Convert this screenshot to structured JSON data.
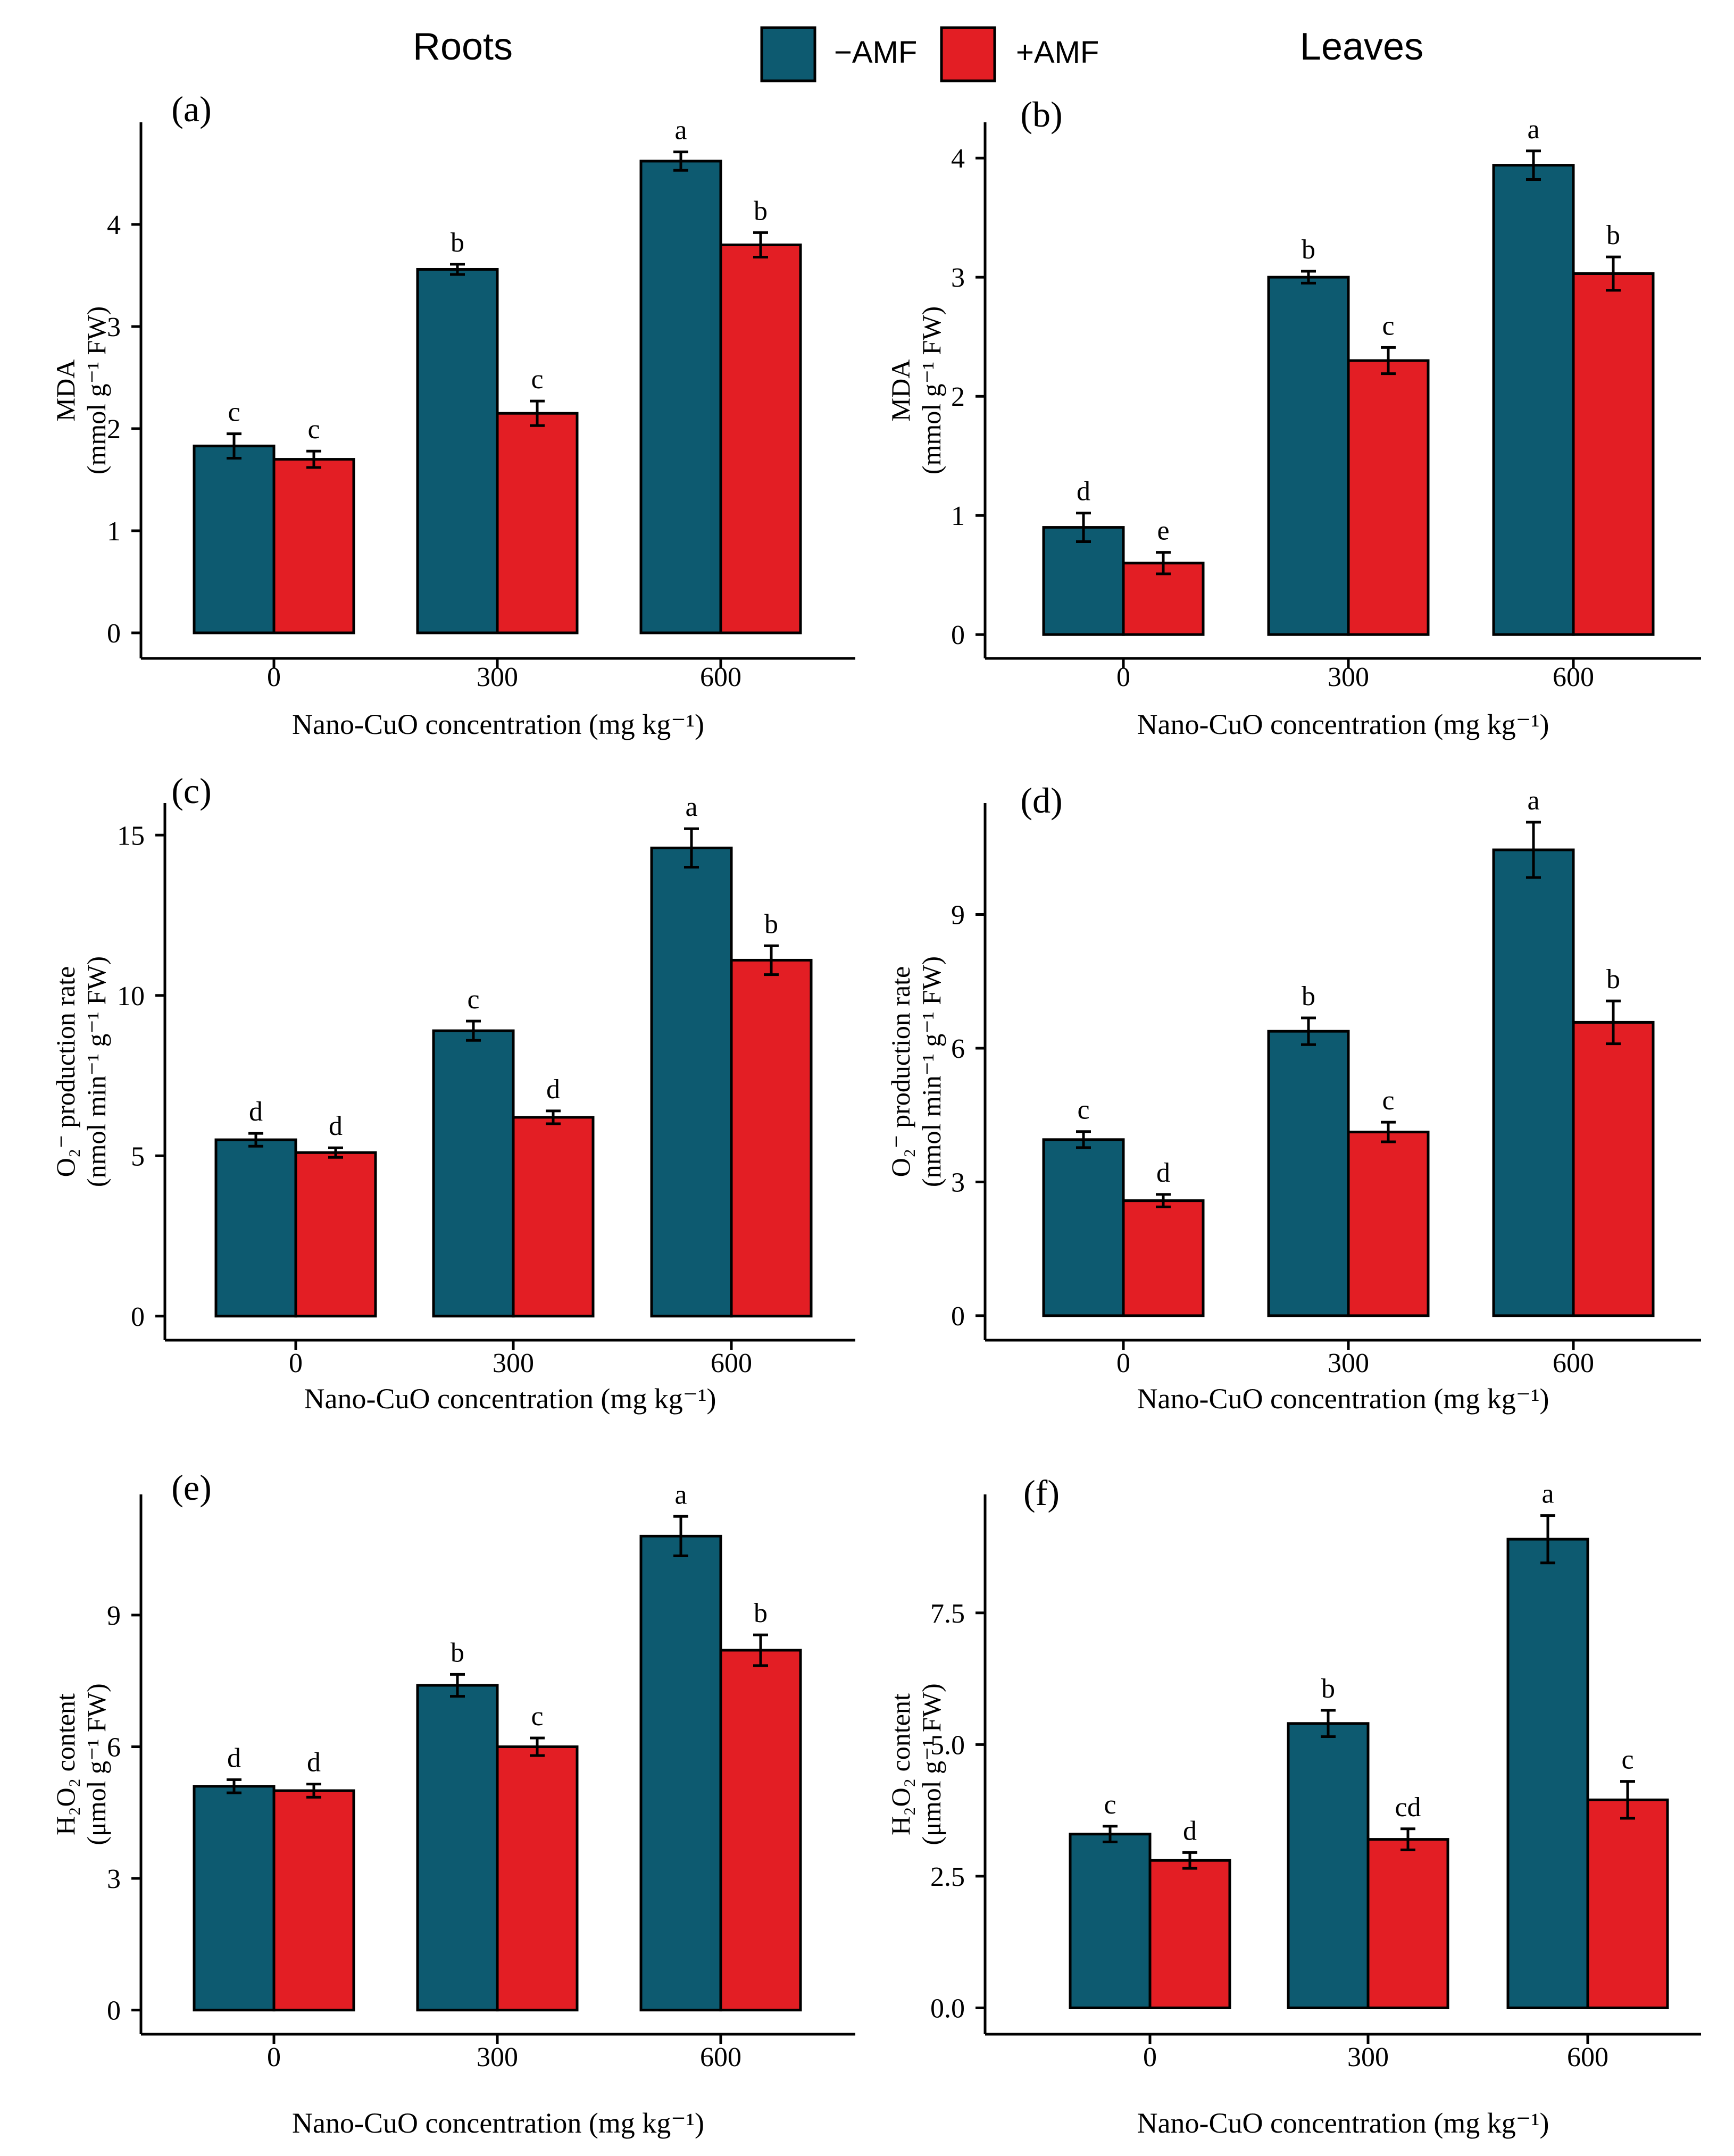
{
  "figure": {
    "column_titles": [
      "Roots",
      "Leaves"
    ],
    "legend": [
      {
        "label": "−AMF",
        "color": "#0d5a70"
      },
      {
        "label": "+AMF",
        "color": "#e31e24"
      }
    ]
  },
  "chart_data": [
    {
      "type": "bar",
      "panel": "(a)",
      "column": "Roots",
      "categories": [
        "0",
        "300",
        "600"
      ],
      "series": [
        {
          "name": "−AMF",
          "values": [
            1.83,
            3.56,
            4.62
          ],
          "errors": [
            0.12,
            0.05,
            0.09
          ],
          "letters": [
            "c",
            "b",
            "a"
          ]
        },
        {
          "name": "+AMF",
          "values": [
            1.7,
            2.15,
            3.8
          ],
          "errors": [
            0.08,
            0.12,
            0.12
          ],
          "letters": [
            "c",
            "c",
            "b"
          ]
        }
      ],
      "xlabel": "Nano-CuO concentration (mg kg⁻¹)",
      "ylabel_lines": [
        "MDA",
        "(mmol g⁻¹ FW)"
      ],
      "yticks": [
        0,
        1,
        2,
        3,
        4
      ],
      "ytick_labels": [
        "0",
        "1",
        "2",
        "3",
        "4"
      ],
      "ylim": [
        -0.25,
        5.0
      ]
    },
    {
      "type": "bar",
      "panel": "(b)",
      "column": "Leaves",
      "categories": [
        "0",
        "300",
        "600"
      ],
      "series": [
        {
          "name": "−AMF",
          "values": [
            0.9,
            3.0,
            3.94
          ],
          "errors": [
            0.12,
            0.05,
            0.12
          ],
          "letters": [
            "d",
            "b",
            "a"
          ]
        },
        {
          "name": "+AMF",
          "values": [
            0.6,
            2.3,
            3.03
          ],
          "errors": [
            0.09,
            0.11,
            0.14
          ],
          "letters": [
            "e",
            "c",
            "b"
          ]
        }
      ],
      "xlabel": "Nano-CuO concentration (mg kg⁻¹)",
      "ylabel_lines": [
        "MDA",
        "(mmol g⁻¹ FW)"
      ],
      "yticks": [
        0,
        1,
        2,
        3,
        4
      ],
      "ytick_labels": [
        "0",
        "1",
        "2",
        "3",
        "4"
      ],
      "ylim": [
        -0.2,
        4.3
      ]
    },
    {
      "type": "bar",
      "panel": "(c)",
      "column": "Roots",
      "categories": [
        "0",
        "300",
        "600"
      ],
      "series": [
        {
          "name": "−AMF",
          "values": [
            5.5,
            8.9,
            14.6
          ],
          "errors": [
            0.2,
            0.3,
            0.6
          ],
          "letters": [
            "d",
            "c",
            "a"
          ]
        },
        {
          "name": "+AMF",
          "values": [
            5.1,
            6.2,
            11.1
          ],
          "errors": [
            0.15,
            0.2,
            0.45
          ],
          "letters": [
            "d",
            "d",
            "b"
          ]
        }
      ],
      "xlabel": "Nano-CuO concentration (mg kg⁻¹)",
      "ylabel_lines": [
        "O₂⁻ production rate",
        "(nmol min⁻¹ g⁻¹ FW)"
      ],
      "yticks": [
        0,
        5,
        10,
        15
      ],
      "ytick_labels": [
        "0",
        "5",
        "10",
        "15"
      ],
      "ylim": [
        -0.75,
        16.0
      ]
    },
    {
      "type": "bar",
      "panel": "(d)",
      "column": "Leaves",
      "categories": [
        "0",
        "300",
        "600"
      ],
      "series": [
        {
          "name": "−AMF",
          "values": [
            3.95,
            6.38,
            10.45
          ],
          "errors": [
            0.18,
            0.3,
            0.62
          ],
          "letters": [
            "c",
            "b",
            "a"
          ]
        },
        {
          "name": "+AMF",
          "values": [
            2.58,
            4.12,
            6.58
          ],
          "errors": [
            0.14,
            0.22,
            0.48
          ],
          "letters": [
            "d",
            "c",
            "b"
          ]
        }
      ],
      "xlabel": "Nano-CuO concentration (mg kg⁻¹)",
      "ylabel_lines": [
        "O₂⁻ production rate",
        "(nmol min⁻¹ g⁻¹ FW)"
      ],
      "yticks": [
        0,
        3,
        6,
        9
      ],
      "ytick_labels": [
        "0",
        "3",
        "6",
        "9"
      ],
      "ylim": [
        -0.55,
        11.5
      ]
    },
    {
      "type": "bar",
      "panel": "(e)",
      "column": "Roots",
      "categories": [
        "0",
        "300",
        "600"
      ],
      "series": [
        {
          "name": "−AMF",
          "values": [
            5.1,
            7.4,
            10.8
          ],
          "errors": [
            0.15,
            0.25,
            0.45
          ],
          "letters": [
            "d",
            "b",
            "a"
          ]
        },
        {
          "name": "+AMF",
          "values": [
            5.0,
            6.0,
            8.2
          ],
          "errors": [
            0.15,
            0.2,
            0.35
          ],
          "letters": [
            "d",
            "c",
            "b"
          ]
        }
      ],
      "xlabel": "Nano-CuO concentration (mg kg⁻¹)",
      "ylabel_lines": [
        "H₂O₂ content",
        "(μmol g⁻¹ FW)"
      ],
      "yticks": [
        0,
        3,
        6,
        9
      ],
      "ytick_labels": [
        "0",
        "3",
        "6",
        "9"
      ],
      "ylim": [
        -0.55,
        11.75
      ]
    },
    {
      "type": "bar",
      "panel": "(f)",
      "column": "Leaves",
      "categories": [
        "0",
        "300",
        "600"
      ],
      "series": [
        {
          "name": "−AMF",
          "values": [
            3.3,
            5.4,
            8.9
          ],
          "errors": [
            0.15,
            0.25,
            0.45
          ],
          "letters": [
            "c",
            "b",
            "a"
          ]
        },
        {
          "name": "+AMF",
          "values": [
            2.8,
            3.2,
            3.95
          ],
          "errors": [
            0.15,
            0.2,
            0.35
          ],
          "letters": [
            "d",
            "cd",
            "c"
          ]
        }
      ],
      "xlabel": "Nano-CuO concentration (mg kg⁻¹)",
      "ylabel_lines": [
        "H₂O₂ content",
        "(μmol g⁻¹ FW)"
      ],
      "yticks": [
        0,
        2.5,
        5.0,
        7.5
      ],
      "ytick_labels": [
        "0.0",
        "2.5",
        "5.0",
        "7.5"
      ],
      "ylim": [
        -0.5,
        9.75
      ]
    }
  ]
}
